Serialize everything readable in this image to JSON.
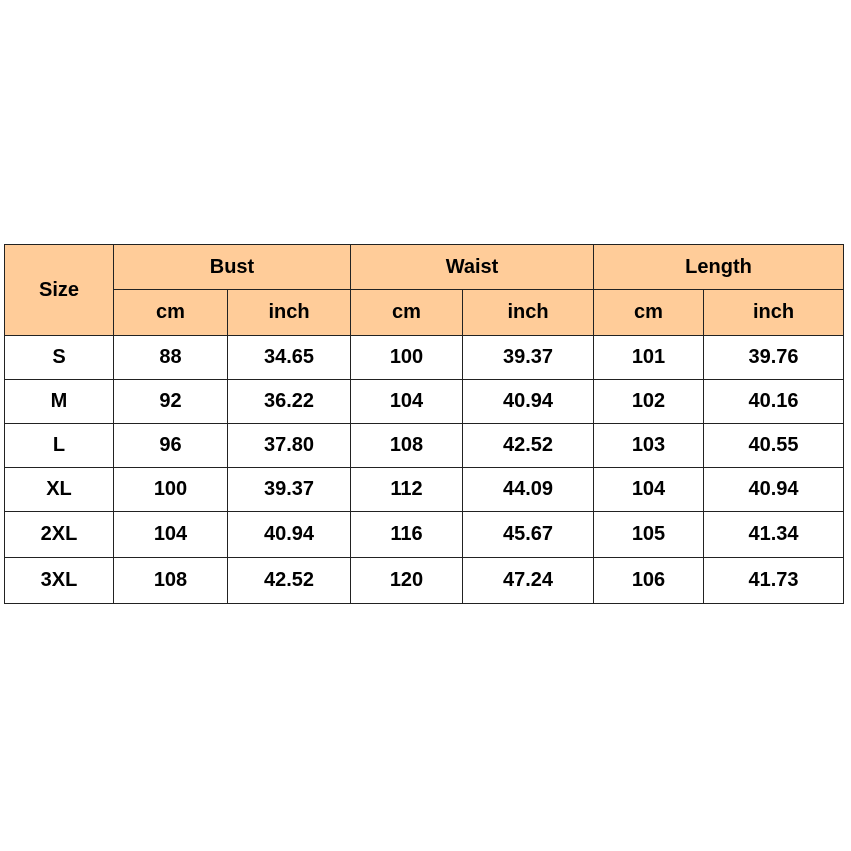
{
  "colors": {
    "header_bg": "#FFCC99",
    "border": "#222222"
  },
  "headers": {
    "size": "Size",
    "groups": [
      "Bust",
      "Waist",
      "Length"
    ],
    "units": [
      "cm",
      "inch",
      "cm",
      "inch",
      "cm",
      "inch"
    ]
  },
  "rows": [
    {
      "size": "S",
      "values": [
        "88",
        "34.65",
        "100",
        "39.37",
        "101",
        "39.76"
      ]
    },
    {
      "size": "M",
      "values": [
        "92",
        "36.22",
        "104",
        "40.94",
        "102",
        "40.16"
      ]
    },
    {
      "size": "L",
      "values": [
        "96",
        "37.80",
        "108",
        "42.52",
        "103",
        "40.55"
      ]
    },
    {
      "size": "XL",
      "values": [
        "100",
        "39.37",
        "112",
        "44.09",
        "104",
        "40.94"
      ]
    },
    {
      "size": "2XL",
      "values": [
        "104",
        "40.94",
        "116",
        "45.67",
        "105",
        "41.34"
      ]
    },
    {
      "size": "3XL",
      "values": [
        "108",
        "42.52",
        "120",
        "47.24",
        "106",
        "41.73"
      ]
    }
  ]
}
